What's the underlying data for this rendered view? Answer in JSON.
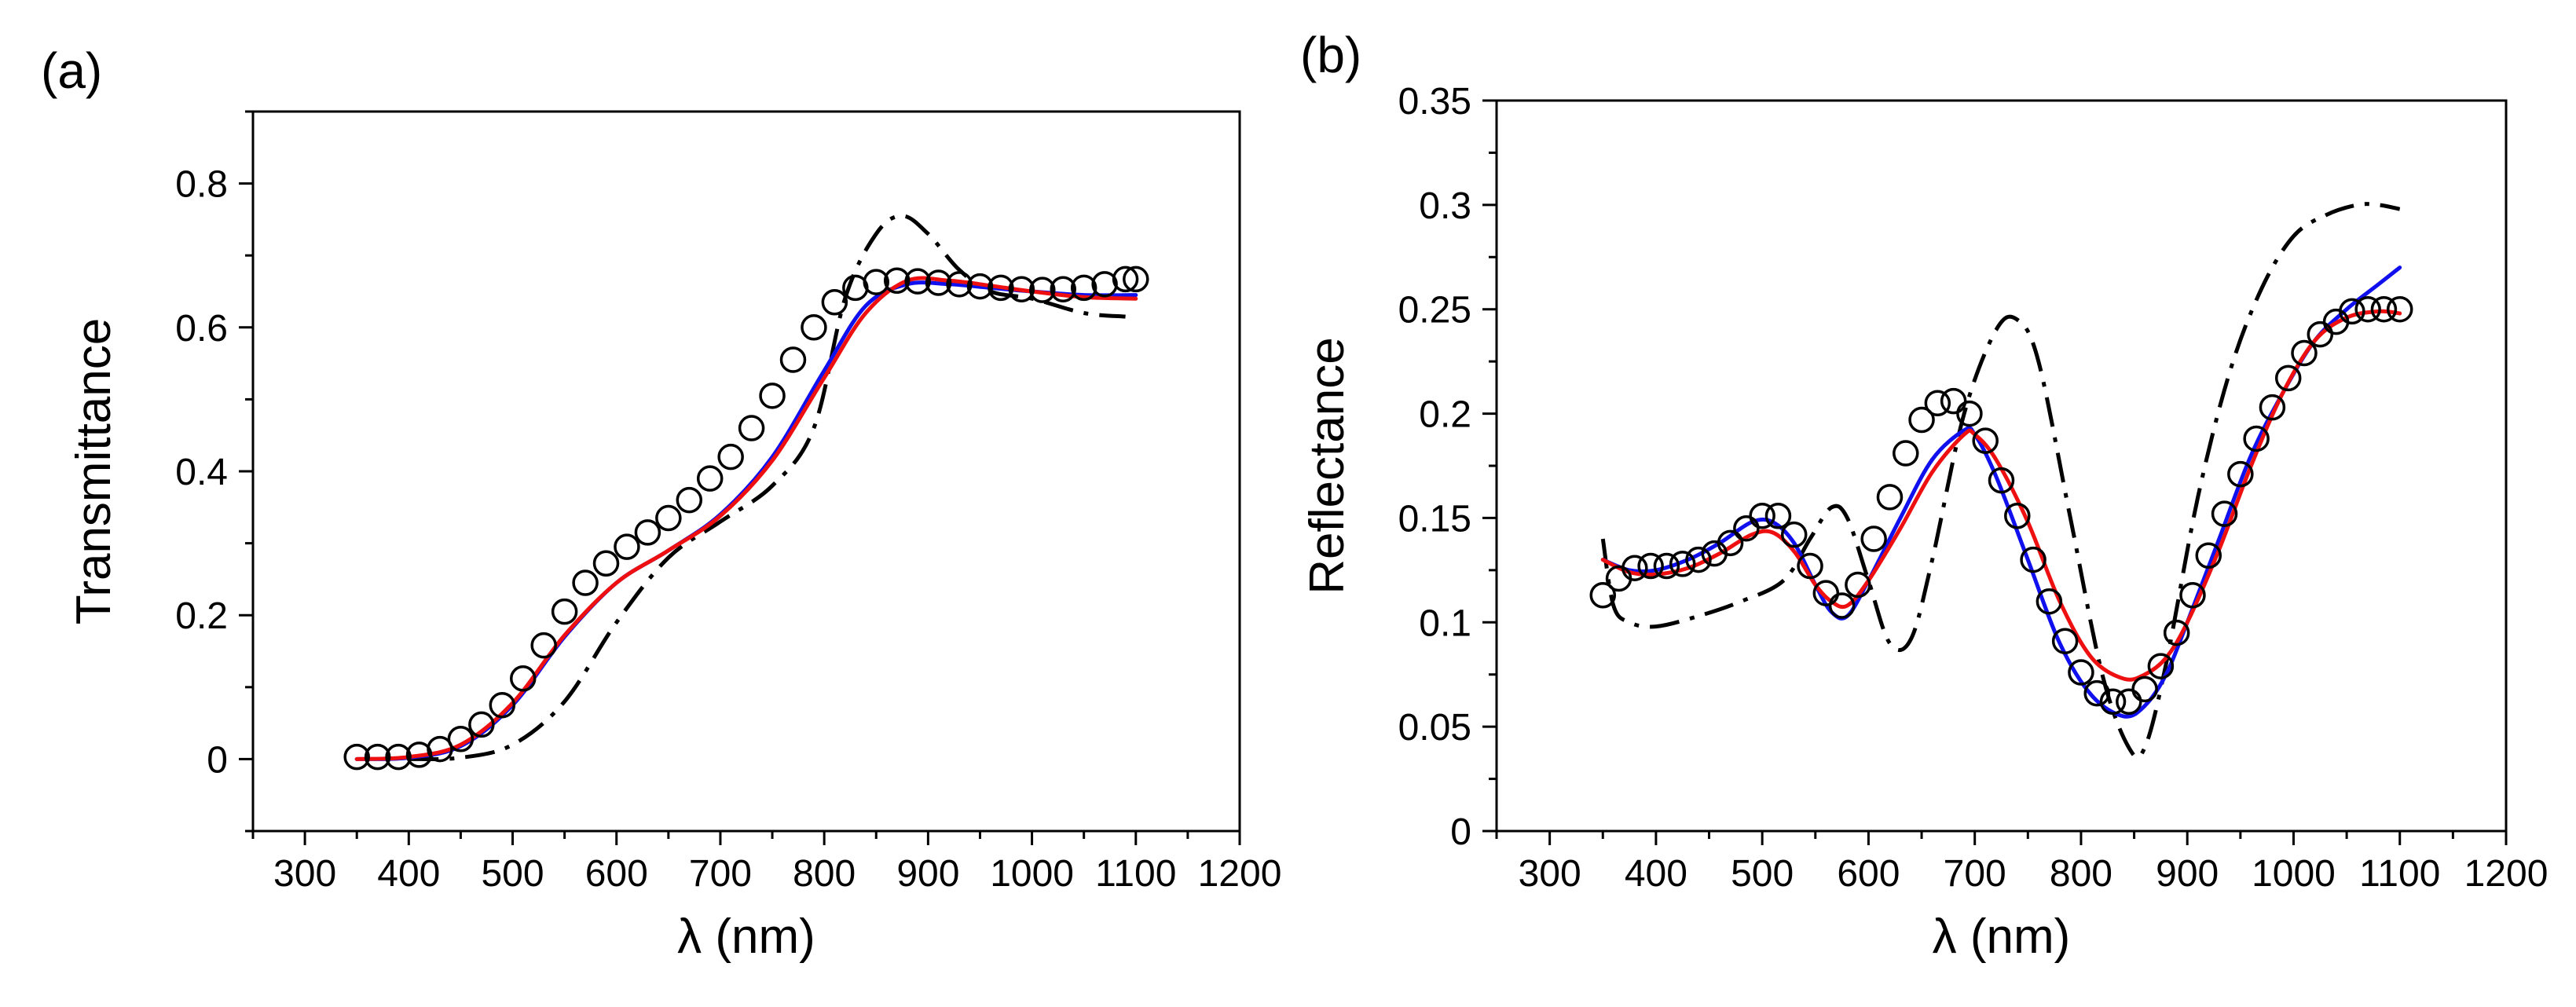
{
  "chart_data": [
    {
      "panel_label": "(a)",
      "type": "line",
      "xlabel": "λ (nm)",
      "ylabel": "Transmittance",
      "xlim": [
        250,
        1200
      ],
      "ylim": [
        -0.1,
        0.9
      ],
      "xticks": [
        300,
        400,
        500,
        600,
        700,
        800,
        900,
        1000,
        1100,
        1200
      ],
      "xtick_labels": [
        "300",
        "400",
        "500",
        "600",
        "700",
        "800",
        "900",
        "1000",
        "1100",
        "1200"
      ],
      "yticks": [
        0,
        0.2,
        0.4,
        0.6,
        0.8
      ],
      "ytick_labels": [
        "0",
        "0.2",
        "0.4",
        "0.6",
        "0.8"
      ],
      "grid": false,
      "series": [
        {
          "style": "scatter",
          "marker": "open-circle",
          "color": "#000000",
          "x": [
            350,
            370,
            390,
            410,
            430,
            450,
            470,
            490,
            510,
            530,
            550,
            570,
            590,
            610,
            630,
            650,
            670,
            690,
            710,
            730,
            750,
            770,
            790,
            810,
            830,
            850,
            870,
            890,
            910,
            930,
            950,
            970,
            990,
            1010,
            1030,
            1050,
            1070,
            1090,
            1100
          ],
          "y": [
            0.003,
            0.003,
            0.003,
            0.006,
            0.014,
            0.028,
            0.048,
            0.075,
            0.112,
            0.158,
            0.205,
            0.245,
            0.272,
            0.295,
            0.315,
            0.335,
            0.36,
            0.39,
            0.42,
            0.46,
            0.505,
            0.555,
            0.6,
            0.635,
            0.655,
            0.663,
            0.665,
            0.664,
            0.662,
            0.66,
            0.657,
            0.655,
            0.653,
            0.652,
            0.653,
            0.655,
            0.66,
            0.667,
            0.667
          ]
        },
        {
          "style": "dashdot",
          "color": "#000000",
          "x": [
            400,
            450,
            500,
            550,
            600,
            650,
            700,
            750,
            790,
            820,
            850,
            875,
            900,
            930,
            960,
            1000,
            1050,
            1090
          ],
          "y": [
            0,
            0.002,
            0.02,
            0.08,
            0.19,
            0.28,
            0.33,
            0.38,
            0.46,
            0.64,
            0.73,
            0.755,
            0.73,
            0.68,
            0.65,
            0.64,
            0.62,
            0.615
          ]
        },
        {
          "style": "solid",
          "color": "#1010ee",
          "x": [
            350,
            400,
            450,
            500,
            550,
            600,
            650,
            700,
            750,
            800,
            840,
            880,
            920,
            960,
            1000,
            1050,
            1100
          ],
          "y": [
            0,
            0.002,
            0.018,
            0.075,
            0.17,
            0.245,
            0.29,
            0.34,
            0.42,
            0.54,
            0.63,
            0.66,
            0.66,
            0.655,
            0.65,
            0.645,
            0.645
          ]
        },
        {
          "style": "solid",
          "color": "#ee1010",
          "x": [
            350,
            400,
            450,
            500,
            550,
            600,
            650,
            700,
            750,
            800,
            840,
            880,
            920,
            960,
            1000,
            1050,
            1100
          ],
          "y": [
            0,
            0.003,
            0.02,
            0.078,
            0.172,
            0.245,
            0.29,
            0.338,
            0.415,
            0.53,
            0.62,
            0.665,
            0.665,
            0.658,
            0.65,
            0.642,
            0.64
          ]
        }
      ]
    },
    {
      "panel_label": "(b)",
      "type": "line",
      "xlabel": "λ (nm)",
      "ylabel": "Reflectance",
      "xlim": [
        250,
        1200
      ],
      "ylim": [
        0,
        0.35
      ],
      "xticks": [
        300,
        400,
        500,
        600,
        700,
        800,
        900,
        1000,
        1100,
        1200
      ],
      "xtick_labels": [
        "300",
        "400",
        "500",
        "600",
        "700",
        "800",
        "900",
        "1000",
        "1100",
        "1200"
      ],
      "yticks": [
        0,
        0.05,
        0.1,
        0.15,
        0.2,
        0.25,
        0.3,
        0.35
      ],
      "ytick_labels": [
        "0",
        "0.05",
        "0.1",
        "0.15",
        "0.2",
        "0.25",
        "0.3",
        "0.35"
      ],
      "grid": false,
      "series": [
        {
          "style": "scatter",
          "marker": "open-circle",
          "color": "#000000",
          "x": [
            350,
            365,
            380,
            395,
            410,
            425,
            440,
            455,
            470,
            485,
            500,
            515,
            530,
            545,
            560,
            575,
            590,
            605,
            620,
            635,
            650,
            665,
            680,
            695,
            710,
            725,
            740,
            755,
            770,
            785,
            800,
            815,
            830,
            845,
            860,
            875,
            890,
            905,
            920,
            935,
            950,
            965,
            980,
            995,
            1010,
            1025,
            1040,
            1055,
            1070,
            1085,
            1100
          ],
          "y": [
            0.113,
            0.121,
            0.126,
            0.127,
            0.127,
            0.128,
            0.13,
            0.133,
            0.138,
            0.145,
            0.151,
            0.151,
            0.142,
            0.127,
            0.114,
            0.108,
            0.118,
            0.14,
            0.16,
            0.181,
            0.197,
            0.205,
            0.206,
            0.2,
            0.187,
            0.168,
            0.151,
            0.13,
            0.11,
            0.091,
            0.076,
            0.066,
            0.062,
            0.062,
            0.068,
            0.079,
            0.095,
            0.113,
            0.132,
            0.152,
            0.171,
            0.188,
            0.203,
            0.217,
            0.229,
            0.238,
            0.244,
            0.249,
            0.25,
            0.25,
            0.25
          ]
        },
        {
          "style": "dashdot",
          "color": "#000000",
          "x": [
            350,
            360,
            375,
            400,
            440,
            480,
            520,
            545,
            565,
            580,
            600,
            620,
            640,
            660,
            690,
            720,
            740,
            760,
            790,
            820,
            845,
            860,
            880,
            910,
            940,
            970,
            1000,
            1030,
            1060,
            1080,
            1100
          ],
          "y": [
            0.14,
            0.108,
            0.1,
            0.098,
            0.103,
            0.11,
            0.12,
            0.14,
            0.155,
            0.15,
            0.12,
            0.09,
            0.092,
            0.13,
            0.2,
            0.24,
            0.245,
            0.225,
            0.15,
            0.075,
            0.04,
            0.04,
            0.08,
            0.16,
            0.22,
            0.26,
            0.285,
            0.295,
            0.3,
            0.3,
            0.298
          ]
        },
        {
          "style": "solid",
          "color": "#1010ee",
          "x": [
            350,
            375,
            400,
            430,
            460,
            490,
            510,
            530,
            550,
            565,
            580,
            600,
            630,
            660,
            690,
            700,
            720,
            750,
            780,
            810,
            840,
            860,
            880,
            900,
            930,
            960,
            990,
            1020,
            1050,
            1080,
            1100
          ],
          "y": [
            0.13,
            0.125,
            0.125,
            0.13,
            0.138,
            0.148,
            0.148,
            0.138,
            0.118,
            0.105,
            0.103,
            0.12,
            0.15,
            0.178,
            0.192,
            0.19,
            0.17,
            0.13,
            0.09,
            0.065,
            0.055,
            0.06,
            0.075,
            0.1,
            0.14,
            0.18,
            0.21,
            0.235,
            0.25,
            0.262,
            0.27
          ]
        },
        {
          "style": "solid",
          "color": "#ee1010",
          "x": [
            350,
            375,
            400,
            430,
            460,
            490,
            510,
            530,
            550,
            565,
            580,
            600,
            630,
            660,
            690,
            700,
            720,
            750,
            780,
            810,
            840,
            860,
            880,
            900,
            930,
            960,
            990,
            1020,
            1050,
            1080,
            1100
          ],
          "y": [
            0.13,
            0.124,
            0.123,
            0.126,
            0.133,
            0.142,
            0.143,
            0.134,
            0.118,
            0.11,
            0.108,
            0.12,
            0.145,
            0.172,
            0.19,
            0.19,
            0.178,
            0.148,
            0.11,
            0.083,
            0.073,
            0.075,
            0.083,
            0.1,
            0.135,
            0.175,
            0.21,
            0.235,
            0.246,
            0.249,
            0.248
          ]
        }
      ]
    }
  ]
}
